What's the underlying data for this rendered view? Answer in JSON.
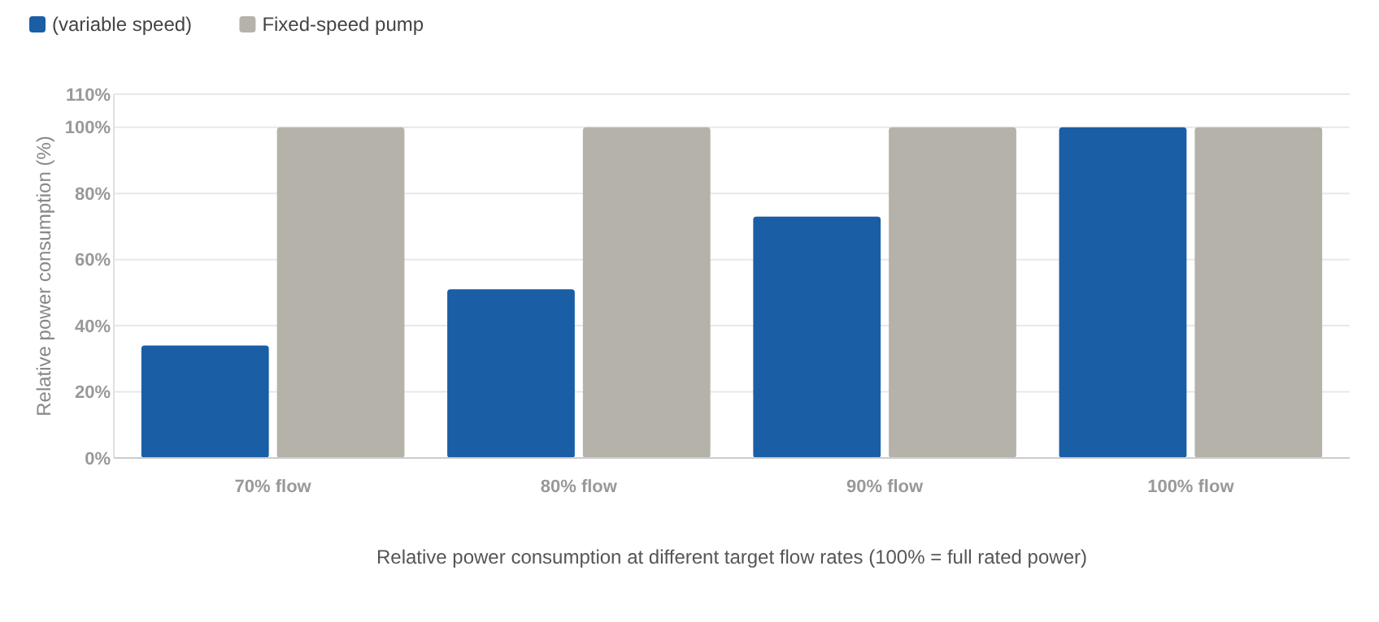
{
  "chart_data": {
    "type": "bar",
    "xlabel": "Relative power consumption at different target flow rates (100% = full rated power)",
    "ylabel": "Relative power consumption (%)",
    "categories": [
      "70% flow",
      "80% flow",
      "90% flow",
      "100% flow"
    ],
    "series": [
      {
        "name": "(variable speed)",
        "color": "#1a5ea6",
        "values": [
          34,
          51,
          73,
          100
        ]
      },
      {
        "name": "Fixed-speed pump",
        "color": "#b5b2aa",
        "values": [
          100,
          100,
          100,
          100
        ]
      }
    ],
    "ylim": [
      0,
      110
    ],
    "yticks": [
      {
        "value": 0,
        "label": "0%"
      },
      {
        "value": 20,
        "label": "20%"
      },
      {
        "value": 40,
        "label": "40%"
      },
      {
        "value": 60,
        "label": "60%"
      },
      {
        "value": 80,
        "label": "80%"
      },
      {
        "value": 100,
        "label": "100%"
      },
      {
        "value": 110,
        "label": "110%"
      }
    ],
    "grid": "y",
    "legend": "top left"
  }
}
